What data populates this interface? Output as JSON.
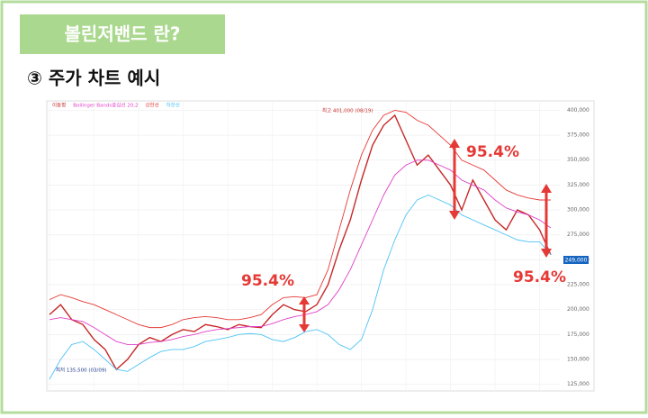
{
  "header": {
    "badge": "볼린저밴드 란?",
    "section": "③ 주가 차트 예시"
  },
  "chart_data": {
    "type": "line",
    "categories": [
      null,
      null,
      null,
      null,
      null,
      null,
      null,
      null,
      null,
      null,
      null,
      null,
      null,
      null,
      null,
      null,
      null,
      null,
      null,
      null,
      null,
      null,
      null,
      null,
      null,
      null,
      null,
      null,
      null,
      null,
      null,
      null,
      null,
      null,
      null,
      null,
      null,
      null,
      null,
      null,
      null,
      null,
      null,
      null,
      null,
      null
    ],
    "series": [
      {
        "name": "이동평",
        "color": "#c62828",
        "values": [
          195000,
          205000,
          190000,
          185000,
          170000,
          160000,
          140000,
          150000,
          165000,
          172000,
          168000,
          175000,
          180000,
          178000,
          185000,
          183000,
          180000,
          185000,
          183000,
          182000,
          195000,
          205000,
          200000,
          198000,
          205000,
          225000,
          260000,
          290000,
          330000,
          365000,
          385000,
          395000,
          370000,
          345000,
          355000,
          340000,
          325000,
          300000,
          330000,
          310000,
          290000,
          280000,
          300000,
          295000,
          280000,
          255000
        ]
      },
      {
        "name": "Bollinger Bands중심선 20,2",
        "color": "#e040c8",
        "values": [
          190000,
          192000,
          190000,
          188000,
          182000,
          175000,
          168000,
          165000,
          165000,
          167000,
          168000,
          170000,
          173000,
          175000,
          178000,
          180000,
          181000,
          182000,
          183000,
          183000,
          186000,
          190000,
          193000,
          195000,
          198000,
          205000,
          220000,
          240000,
          265000,
          290000,
          315000,
          335000,
          345000,
          350000,
          350000,
          345000,
          340000,
          330000,
          325000,
          320000,
          310000,
          302000,
          298000,
          295000,
          290000,
          282000
        ]
      },
      {
        "name": "상한선",
        "color": "#e53935",
        "values": [
          210000,
          215000,
          212000,
          208000,
          205000,
          200000,
          195000,
          190000,
          185000,
          182000,
          182000,
          185000,
          190000,
          192000,
          193000,
          192000,
          190000,
          190000,
          192000,
          195000,
          205000,
          212000,
          213000,
          212000,
          215000,
          240000,
          280000,
          320000,
          355000,
          380000,
          395000,
          400000,
          398000,
          390000,
          385000,
          375000,
          365000,
          350000,
          345000,
          340000,
          330000,
          320000,
          315000,
          312000,
          310000,
          310000
        ]
      },
      {
        "name": "하한선",
        "color": "#4fc3f7",
        "values": [
          130000,
          150000,
          165000,
          168000,
          160000,
          150000,
          140000,
          138000,
          145000,
          152000,
          158000,
          160000,
          160000,
          163000,
          168000,
          170000,
          172000,
          175000,
          176000,
          175000,
          170000,
          168000,
          172000,
          178000,
          180000,
          175000,
          165000,
          160000,
          170000,
          200000,
          240000,
          270000,
          295000,
          310000,
          315000,
          310000,
          305000,
          295000,
          290000,
          285000,
          280000,
          275000,
          270000,
          268000,
          268000,
          255000
        ]
      }
    ],
    "ylim": [
      122000,
      404000
    ],
    "yticks": [
      {
        "value": 125000,
        "label": "125,000"
      },
      {
        "value": 150000,
        "label": "150,000"
      },
      {
        "value": 175000,
        "label": "175,000"
      },
      {
        "value": 200000,
        "label": "200,000"
      },
      {
        "value": 225000,
        "label": "225,000"
      },
      {
        "value": 250000,
        "label": "250,000"
      },
      {
        "value": 275000,
        "label": "275,000"
      },
      {
        "value": 300000,
        "label": "300,000"
      },
      {
        "value": 325000,
        "label": "325,000"
      },
      {
        "value": 350000,
        "label": "350,000"
      },
      {
        "value": 375000,
        "label": "375,000"
      },
      {
        "value": 400000,
        "label": "400,000"
      }
    ],
    "grid": true,
    "annotations": {
      "high": "최고 401,000 (08/19)",
      "low": "최저 135,500 (03/09)",
      "last": "249,000",
      "band_a": "95.4%",
      "band_b": "95.4%",
      "band_c": "95.4%"
    }
  }
}
